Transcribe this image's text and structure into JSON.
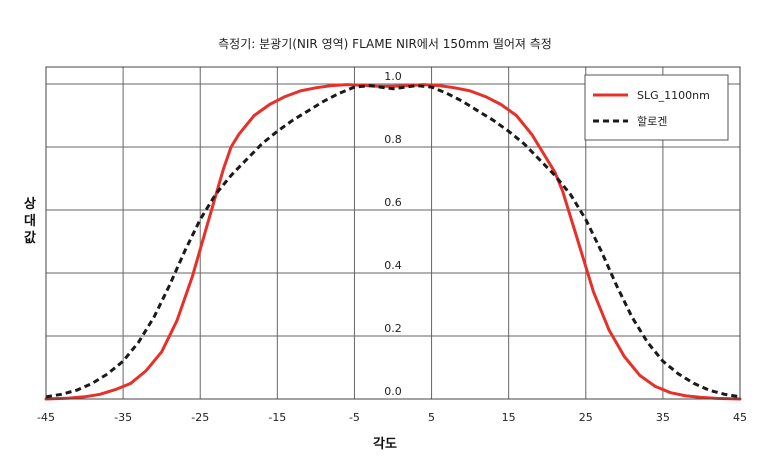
{
  "chart_data": {
    "type": "line",
    "title": "측정기: 분광기(NIR 영역) FLAME NIR에서 150mm 떨어져 측정",
    "xlabel": "각도",
    "ylabel": "상대값",
    "xlim": [
      -45,
      45
    ],
    "ylim": [
      0,
      1.05
    ],
    "xticks": [
      -45,
      -35,
      -25,
      -15,
      -5,
      5,
      15,
      25,
      35,
      45
    ],
    "yticks": [
      0.0,
      0.2,
      0.4,
      0.6,
      0.8,
      1.0
    ],
    "ytick_labels": [
      "0.0",
      "0.2",
      "0.4",
      "0.6",
      "0.8",
      "1.0"
    ],
    "grid": true,
    "legend_position": "top-right",
    "series": [
      {
        "name": "SLG_1100nm",
        "color": "#e8302a",
        "style": "solid",
        "x": [
          -45,
          -42,
          -40,
          -38,
          -36,
          -34,
          -32,
          -30,
          -28,
          -26,
          -24,
          -22,
          -21,
          -20,
          -18,
          -16,
          -14,
          -12,
          -10,
          -8,
          -6,
          -4,
          -2,
          0,
          2,
          4,
          6,
          8,
          10,
          12,
          14,
          16,
          18,
          20,
          21,
          22,
          24,
          26,
          28,
          30,
          32,
          34,
          36,
          38,
          40,
          42,
          45
        ],
        "y": [
          0.0,
          0.003,
          0.007,
          0.015,
          0.03,
          0.05,
          0.09,
          0.15,
          0.25,
          0.39,
          0.56,
          0.73,
          0.8,
          0.84,
          0.9,
          0.935,
          0.96,
          0.978,
          0.988,
          0.995,
          0.998,
          0.996,
          0.993,
          0.993,
          0.995,
          0.998,
          0.995,
          0.988,
          0.978,
          0.96,
          0.935,
          0.9,
          0.84,
          0.76,
          0.72,
          0.66,
          0.5,
          0.34,
          0.22,
          0.135,
          0.075,
          0.04,
          0.02,
          0.01,
          0.005,
          0.002,
          0.0
        ]
      },
      {
        "name": "할로겐",
        "color": "#1a1a1a",
        "style": "dashed",
        "x": [
          -45,
          -43,
          -41,
          -39,
          -37,
          -35,
          -33,
          -31,
          -29,
          -27,
          -25,
          -23,
          -21,
          -19,
          -17,
          -15,
          -13,
          -11,
          -9,
          -7,
          -5,
          -3,
          -1,
          0,
          1,
          3,
          5,
          7,
          9,
          11,
          13,
          15,
          17,
          19,
          21,
          23,
          25,
          27,
          29,
          31,
          33,
          35,
          37,
          39,
          41,
          43,
          45
        ],
        "y": [
          0.007,
          0.015,
          0.028,
          0.05,
          0.08,
          0.12,
          0.18,
          0.26,
          0.36,
          0.47,
          0.57,
          0.65,
          0.71,
          0.76,
          0.81,
          0.85,
          0.885,
          0.915,
          0.945,
          0.97,
          0.99,
          0.995,
          0.988,
          0.985,
          0.988,
          0.995,
          0.99,
          0.97,
          0.945,
          0.915,
          0.885,
          0.85,
          0.81,
          0.76,
          0.71,
          0.65,
          0.57,
          0.47,
          0.36,
          0.26,
          0.18,
          0.12,
          0.08,
          0.05,
          0.028,
          0.015,
          0.007
        ]
      }
    ]
  }
}
